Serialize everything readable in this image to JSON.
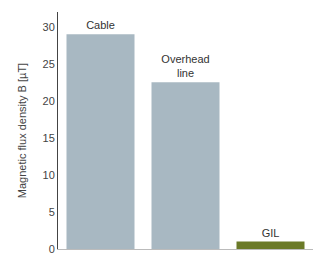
{
  "chart_data": {
    "type": "bar",
    "categories": [
      "Cable",
      "Overhead\nline",
      "GIL"
    ],
    "values": [
      29.0,
      22.5,
      1.0
    ],
    "colors": [
      "#a8b8c2",
      "#a8b8c2",
      "#6b7a28"
    ],
    "ylabel": "Magnetic flux density B [µT]",
    "ylim": [
      0,
      32
    ],
    "yticks": [
      0,
      5,
      10,
      15,
      20,
      25,
      30
    ],
    "grid": false,
    "tick_labels": "y"
  }
}
